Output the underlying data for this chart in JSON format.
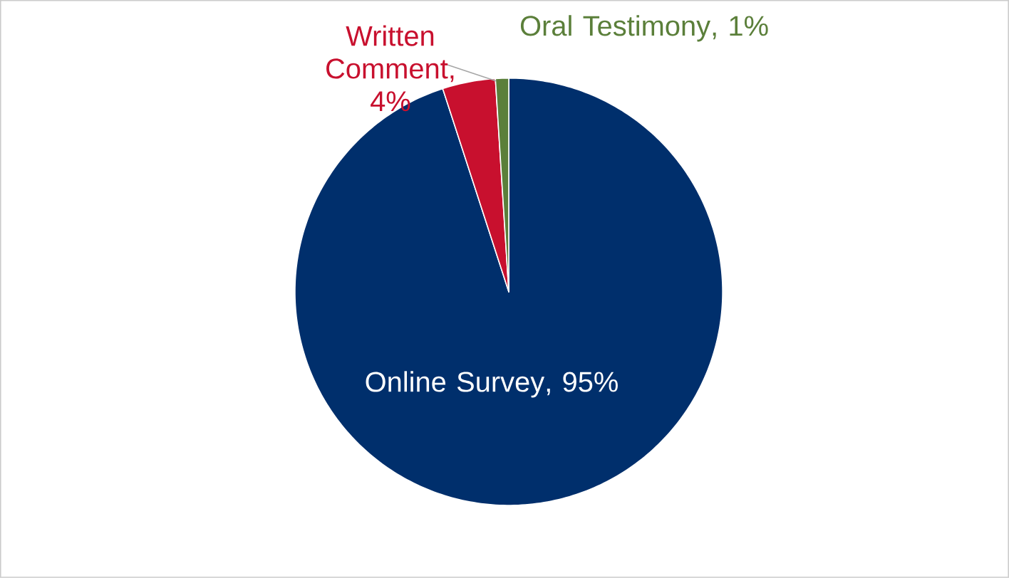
{
  "chart_data": {
    "type": "pie",
    "categories": [
      "Online Survey",
      "Written Comment",
      "Oral Testimony"
    ],
    "values": [
      95,
      4,
      1
    ],
    "value_labels": [
      ", 95%",
      ", 4%",
      ", 1%"
    ],
    "colors": [
      "#002f6c",
      "#c8102e",
      "#5b7f3a"
    ]
  }
}
